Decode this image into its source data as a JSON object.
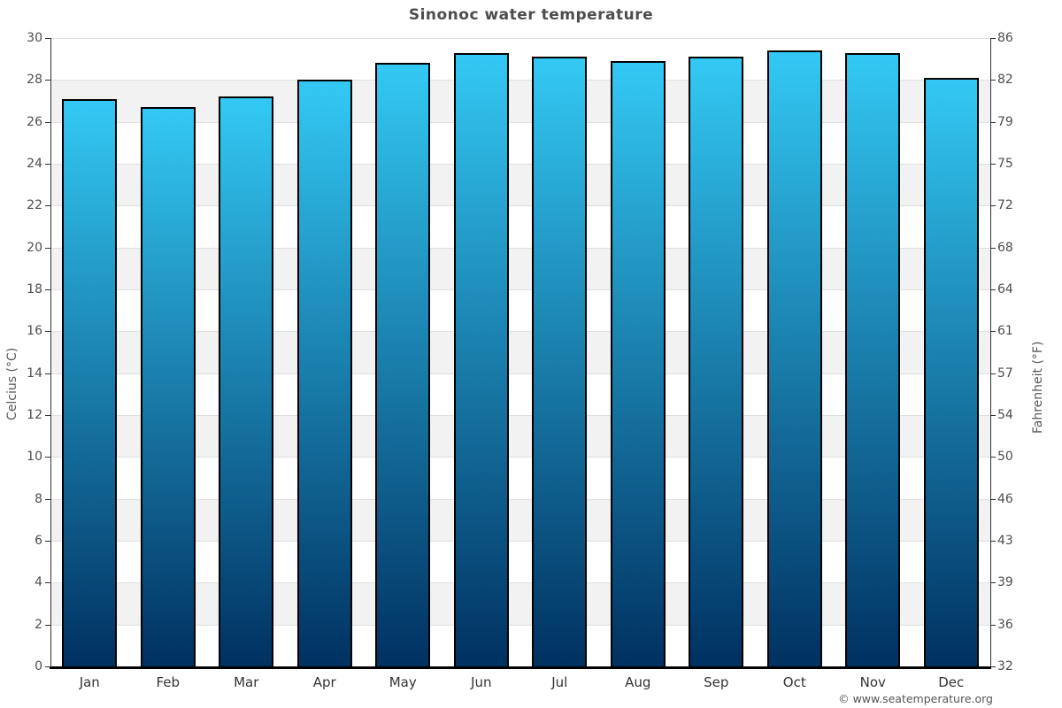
{
  "title": "Sinonoc water temperature",
  "footer": "© www.seatemperature.org",
  "axes": {
    "left_label": "Celcius (°C)",
    "right_label": "Fahrenheit (°F)",
    "celsius_ticks": [
      0,
      2,
      4,
      6,
      8,
      10,
      12,
      14,
      16,
      18,
      20,
      22,
      24,
      26,
      28,
      30
    ],
    "fahrenheit_ticks": [
      32,
      36,
      39,
      43,
      46,
      50,
      54,
      57,
      61,
      64,
      68,
      72,
      75,
      79,
      82,
      86
    ]
  },
  "chart_data": {
    "type": "bar",
    "title": "Sinonoc water temperature",
    "categories": [
      "Jan",
      "Feb",
      "Mar",
      "Apr",
      "May",
      "Jun",
      "Jul",
      "Aug",
      "Sep",
      "Oct",
      "Nov",
      "Dec"
    ],
    "values": [
      27.1,
      26.7,
      27.2,
      28.0,
      28.8,
      29.3,
      29.1,
      28.9,
      29.1,
      29.4,
      29.3,
      28.1
    ],
    "series_name": "Water temperature (°C)",
    "xlabel": "",
    "ylabel": "Celcius (°C)",
    "ylabel_right": "Fahrenheit (°F)",
    "ylim": [
      0,
      30
    ],
    "y2lim": [
      32,
      86
    ],
    "grid": "horizontal-bands-alternating",
    "legend": "none"
  },
  "colors": {
    "bar_gradient_top": "#33c9f4",
    "bar_gradient_bottom": "#003161",
    "bar_border": "#000000",
    "band_gray": "#f2f2f2",
    "band_white": "#ffffff",
    "gridline": "#e0e0e0",
    "axis_line": "#333333",
    "bottom_axis_line": "#000000",
    "title_text": "#4d4d4d",
    "tick_text": "#4d4d4d",
    "month_text": "#333333",
    "footer_text": "#555555"
  }
}
